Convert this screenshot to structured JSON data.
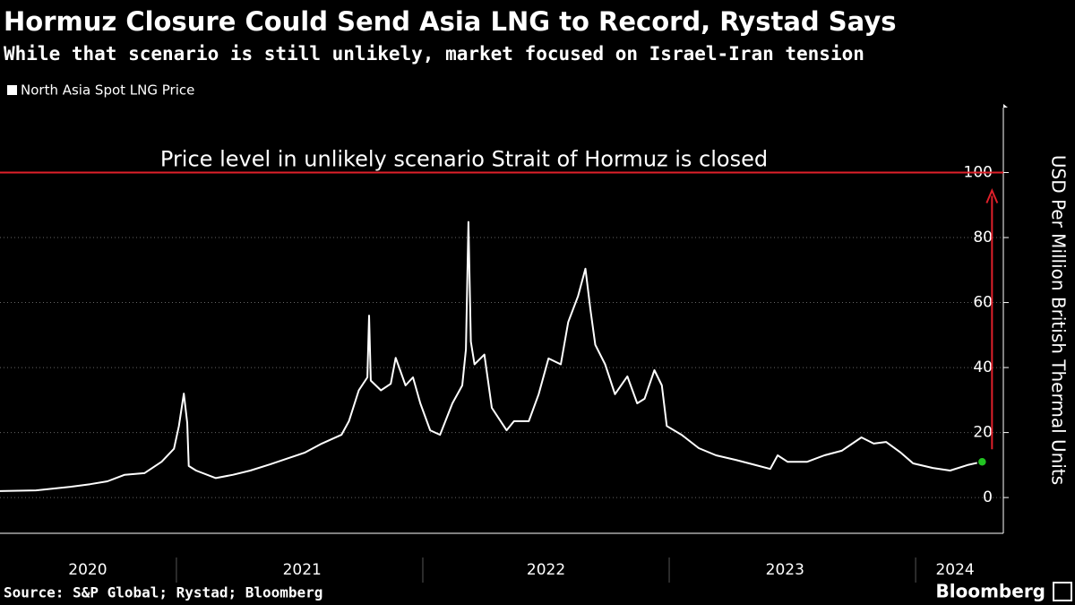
{
  "chart_data": {
    "type": "line",
    "title": "Hormuz Closure Could Send Asia LNG to Record, Rystad Says",
    "subtitle": "While that scenario is still unlikely, market focused on Israel-Iran tension",
    "y_axis_label": "USD Per Million British Thermal Units",
    "source": "Source: S&P Global; Rystad; Bloomberg",
    "brand": "Bloomberg",
    "x": [
      2020.28,
      2020.43,
      2020.57,
      2020.65,
      2020.72,
      2020.79,
      2020.87,
      2020.94,
      2020.99,
      2021.01,
      2021.03,
      2021.044,
      2021.05,
      2021.08,
      2021.16,
      2021.23,
      2021.3,
      2021.38,
      2021.45,
      2021.52,
      2021.59,
      2021.67,
      2021.7,
      2021.74,
      2021.775,
      2021.782,
      2021.789,
      2021.83,
      2021.87,
      2021.89,
      2021.93,
      2021.96,
      2021.99,
      2022.03,
      2022.07,
      2022.12,
      2022.16,
      2022.175,
      2022.185,
      2022.195,
      2022.21,
      2022.25,
      2022.28,
      2022.34,
      2022.37,
      2022.43,
      2022.47,
      2022.51,
      2022.56,
      2022.59,
      2022.63,
      2022.66,
      2022.68,
      2022.7,
      2022.74,
      2022.78,
      2022.83,
      2022.87,
      2022.9,
      2022.94,
      2022.97,
      2022.99,
      2023.05,
      2023.12,
      2023.19,
      2023.27,
      2023.34,
      2023.41,
      2023.44,
      2023.48,
      2023.56,
      2023.63,
      2023.7,
      2023.78,
      2023.83,
      2023.88,
      2023.94,
      2023.99,
      2024.07,
      2024.14,
      2024.21,
      2024.27
    ],
    "series": [
      {
        "name": "North Asia Spot LNG Price",
        "color": "#ffffff",
        "values": [
          2.0,
          2.2,
          3.3,
          4.1,
          5.0,
          7.0,
          7.5,
          11.0,
          15.0,
          22.0,
          32.0,
          23.0,
          9.7,
          8.3,
          6.0,
          7.0,
          8.3,
          10.2,
          12.0,
          13.8,
          16.6,
          19.3,
          23.5,
          33.0,
          37.0,
          56.0,
          36.0,
          33.0,
          35.0,
          43.0,
          34.5,
          37.0,
          29.0,
          20.7,
          19.3,
          29.0,
          34.5,
          45.6,
          84.8,
          48.0,
          41.0,
          44.0,
          27.6,
          20.7,
          23.5,
          23.5,
          31.8,
          42.8,
          41.0,
          54.0,
          62.0,
          70.4,
          58.0,
          47.0,
          41.0,
          31.8,
          37.3,
          29.0,
          30.4,
          39.2,
          34.5,
          22.0,
          19.3,
          15.2,
          13.0,
          11.6,
          10.2,
          8.8,
          13.0,
          11.0,
          11.0,
          13.0,
          14.4,
          18.5,
          16.6,
          17.1,
          13.8,
          10.5,
          9.1,
          8.3,
          10.0,
          11.0
        ]
      }
    ],
    "last_point_color": "#22c322",
    "reference_line": {
      "value": 100,
      "label": "Price level in unlikely scenario Strait of Hormuz is closed",
      "color": "#e0202a"
    },
    "xlim": [
      2020.284,
      2024.356
    ],
    "xticks": [
      {
        "value": 2020.64,
        "label": "2020"
      },
      {
        "value": 2021.51,
        "label": "2021"
      },
      {
        "value": 2022.5,
        "label": "2022"
      },
      {
        "value": 2023.47,
        "label": "2023"
      },
      {
        "value": 2024.16,
        "label": "2024"
      }
    ],
    "x_boundaries": [
      2021,
      2022,
      2023,
      2024
    ],
    "ylim": [
      -11,
      120
    ],
    "yticks": [
      0,
      20,
      40,
      60,
      80,
      100
    ],
    "grid": true
  }
}
